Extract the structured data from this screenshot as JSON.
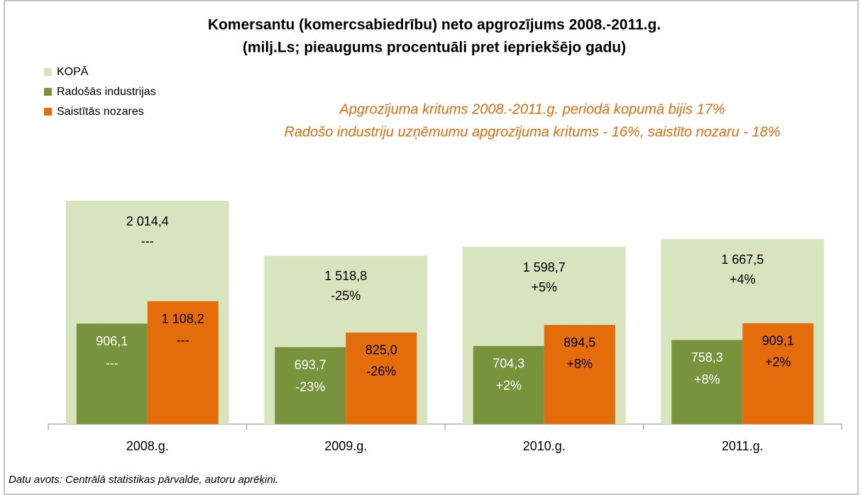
{
  "chart_data": {
    "type": "bar",
    "title": "Komersantu (komercsabiedrību) neto apgrozījums 2008.-2011.g.",
    "subtitle": "(milj.Ls; pieaugums procentuāli pret iepriekšējo gadu)",
    "annotations": [
      "Apgrozījuma kritums 2008.-2011.g. periodā kopumā bijis 17%",
      "Radošo industriju uzņēmumu apgrozījuma kritums - 16%, saistīto nozaru - 18%"
    ],
    "source": "Datu avots: Centrālā statistikas pārvalde, autoru aprēķini.",
    "categories": [
      "2008.g.",
      "2009.g.",
      "2010.g.",
      "2011.g."
    ],
    "legend": "top-left",
    "series": [
      {
        "name": "KOPĀ",
        "color": "#d7e4bd",
        "values": [
          2014.4,
          1518.8,
          1598.7,
          1667.5
        ],
        "value_labels": [
          "2 014,4",
          "1 518,8",
          "1 598,7",
          "1 667,5"
        ],
        "change_labels": [
          "---",
          "-25%",
          "+5%",
          "+4%"
        ]
      },
      {
        "name": "Radošās industrijas",
        "color": "#77933c",
        "values": [
          906.1,
          693.7,
          704.3,
          758.3
        ],
        "value_labels": [
          "906,1",
          "693,7",
          "704,3",
          "758,3"
        ],
        "change_labels": [
          "---",
          "-23%",
          "+2%",
          "+8%"
        ]
      },
      {
        "name": "Saistītās nozares",
        "color": "#e46c0a",
        "values": [
          1108.2,
          825.0,
          894.5,
          909.1
        ],
        "value_labels": [
          "1 108,2",
          "825,0",
          "894,5",
          "909,1"
        ],
        "change_labels": [
          "---",
          "-26%",
          "+8%",
          "+2%"
        ]
      }
    ]
  }
}
